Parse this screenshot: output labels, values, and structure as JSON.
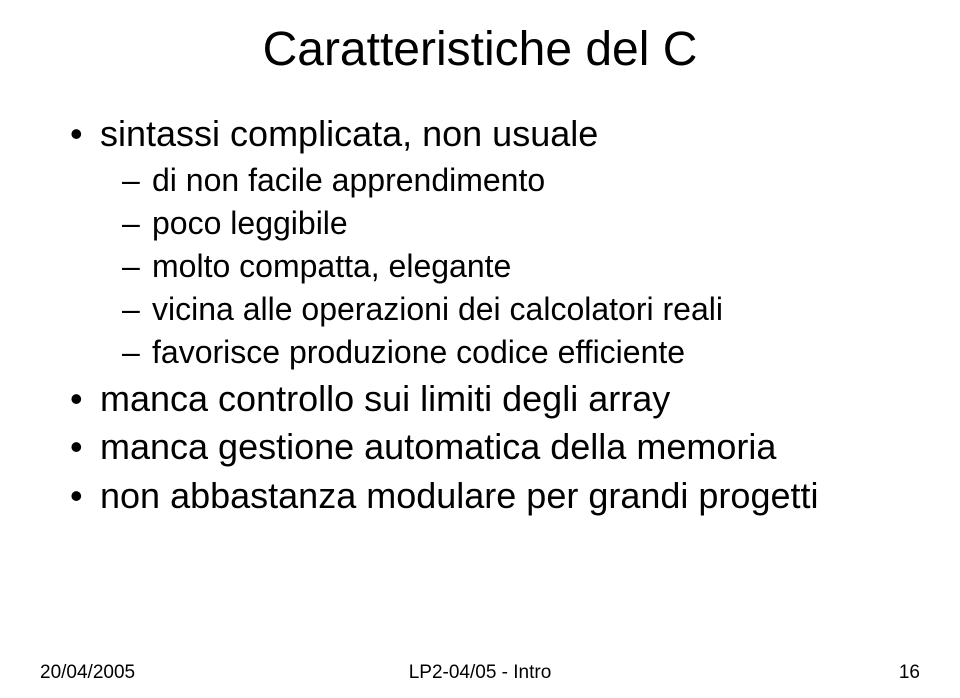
{
  "title": "Caratteristiche del C",
  "bullets": {
    "b1": "sintassi complicata, non usuale",
    "b1_1": "di non facile apprendimento",
    "b1_2": "poco leggibile",
    "b1_3": "molto compatta, elegante",
    "b1_4": "vicina alle operazioni dei calcolatori reali",
    "b1_5": "favorisce produzione codice efficiente",
    "b2": "manca controllo sui limiti degli array",
    "b3": "manca gestione automatica della memoria",
    "b4": "non abbastanza modulare per grandi progetti"
  },
  "footer": {
    "date": "20/04/2005",
    "center": "LP2-04/05 - Intro",
    "page": "16"
  },
  "style": {
    "background_color": "#ffffff",
    "text_color": "#000000",
    "title_fontsize": 48,
    "l1_fontsize": 36,
    "l2_fontsize": 32,
    "footer_fontsize": 19,
    "font_family": "Arial"
  }
}
